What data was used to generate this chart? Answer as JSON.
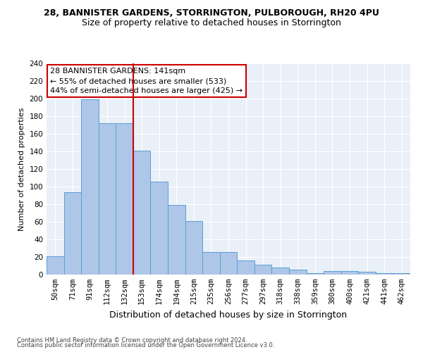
{
  "title1": "28, BANNISTER GARDENS, STORRINGTON, PULBOROUGH, RH20 4PU",
  "title2": "Size of property relative to detached houses in Storrington",
  "xlabel": "Distribution of detached houses by size in Storrington",
  "ylabel": "Number of detached properties",
  "footer1": "Contains HM Land Registry data © Crown copyright and database right 2024.",
  "footer2": "Contains public sector information licensed under the Open Government Licence v3.0.",
  "categories": [
    "50sqm",
    "71sqm",
    "91sqm",
    "112sqm",
    "132sqm",
    "153sqm",
    "174sqm",
    "194sqm",
    "215sqm",
    "235sqm",
    "256sqm",
    "277sqm",
    "297sqm",
    "318sqm",
    "338sqm",
    "359sqm",
    "380sqm",
    "400sqm",
    "421sqm",
    "441sqm",
    "462sqm"
  ],
  "values": [
    21,
    94,
    199,
    172,
    172,
    141,
    106,
    79,
    61,
    26,
    26,
    16,
    11,
    8,
    6,
    2,
    4,
    4,
    3,
    2,
    2
  ],
  "bar_color": "#aec6e8",
  "bar_edge_color": "#5a9fd4",
  "annotation_box_text": "28 BANNISTER GARDENS: 141sqm\n← 55% of detached houses are smaller (533)\n44% of semi-detached houses are larger (425) →",
  "vline_color": "#cc0000",
  "annotation_box_color": "#ffffff",
  "annotation_box_edge_color": "#cc0000",
  "ylim": [
    0,
    240
  ],
  "yticks": [
    0,
    20,
    40,
    60,
    80,
    100,
    120,
    140,
    160,
    180,
    200,
    220,
    240
  ],
  "bg_color": "#eaf0f8",
  "grid_color": "#ffffff",
  "title1_fontsize": 9,
  "title2_fontsize": 9,
  "tick_fontsize": 7.5,
  "ylabel_fontsize": 8,
  "xlabel_fontsize": 9,
  "footer_fontsize": 6,
  "annot_fontsize": 8
}
